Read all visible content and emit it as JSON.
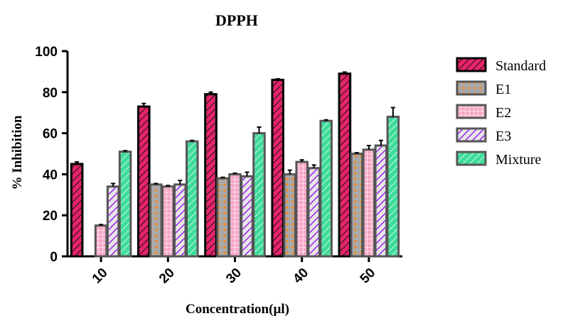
{
  "chart_data": {
    "type": "bar",
    "title": "DPPH",
    "xlabel": "Concentration(µl)",
    "ylabel": "% Inhibition",
    "ylim": [
      0,
      100
    ],
    "yticks": [
      0,
      20,
      40,
      60,
      80,
      100
    ],
    "categories": [
      "10",
      "20",
      "30",
      "40",
      "50"
    ],
    "legend_position": "right",
    "grid": false,
    "series": [
      {
        "name": "Standard",
        "values": [
          45,
          73,
          79,
          86,
          89
        ],
        "errors": [
          1,
          1.5,
          1,
          0.5,
          0.8
        ],
        "color": "#e8236b",
        "pattern": "diag-dark"
      },
      {
        "name": "E1",
        "values": [
          0,
          35,
          38,
          40,
          50
        ],
        "errors": [
          0,
          0.5,
          0.5,
          2,
          0.5
        ],
        "color": "#f08a24",
        "pattern": "dots-orange"
      },
      {
        "name": "E2",
        "values": [
          15,
          34,
          40,
          46,
          52
        ],
        "errors": [
          0.5,
          0.5,
          0.5,
          1,
          2
        ],
        "color": "#f7a6c6",
        "pattern": "grid-pink"
      },
      {
        "name": "E3",
        "values": [
          34,
          35,
          39,
          43,
          54
        ],
        "errors": [
          1.5,
          2,
          2,
          1.5,
          2.5
        ],
        "color": "#a020f0",
        "pattern": "diag-purple"
      },
      {
        "name": "Mixture",
        "values": [
          51,
          56,
          60,
          66,
          68
        ],
        "errors": [
          0.5,
          0.5,
          3,
          0.5,
          4.5
        ],
        "color": "#3ddc9a",
        "pattern": "diag-green"
      }
    ]
  }
}
